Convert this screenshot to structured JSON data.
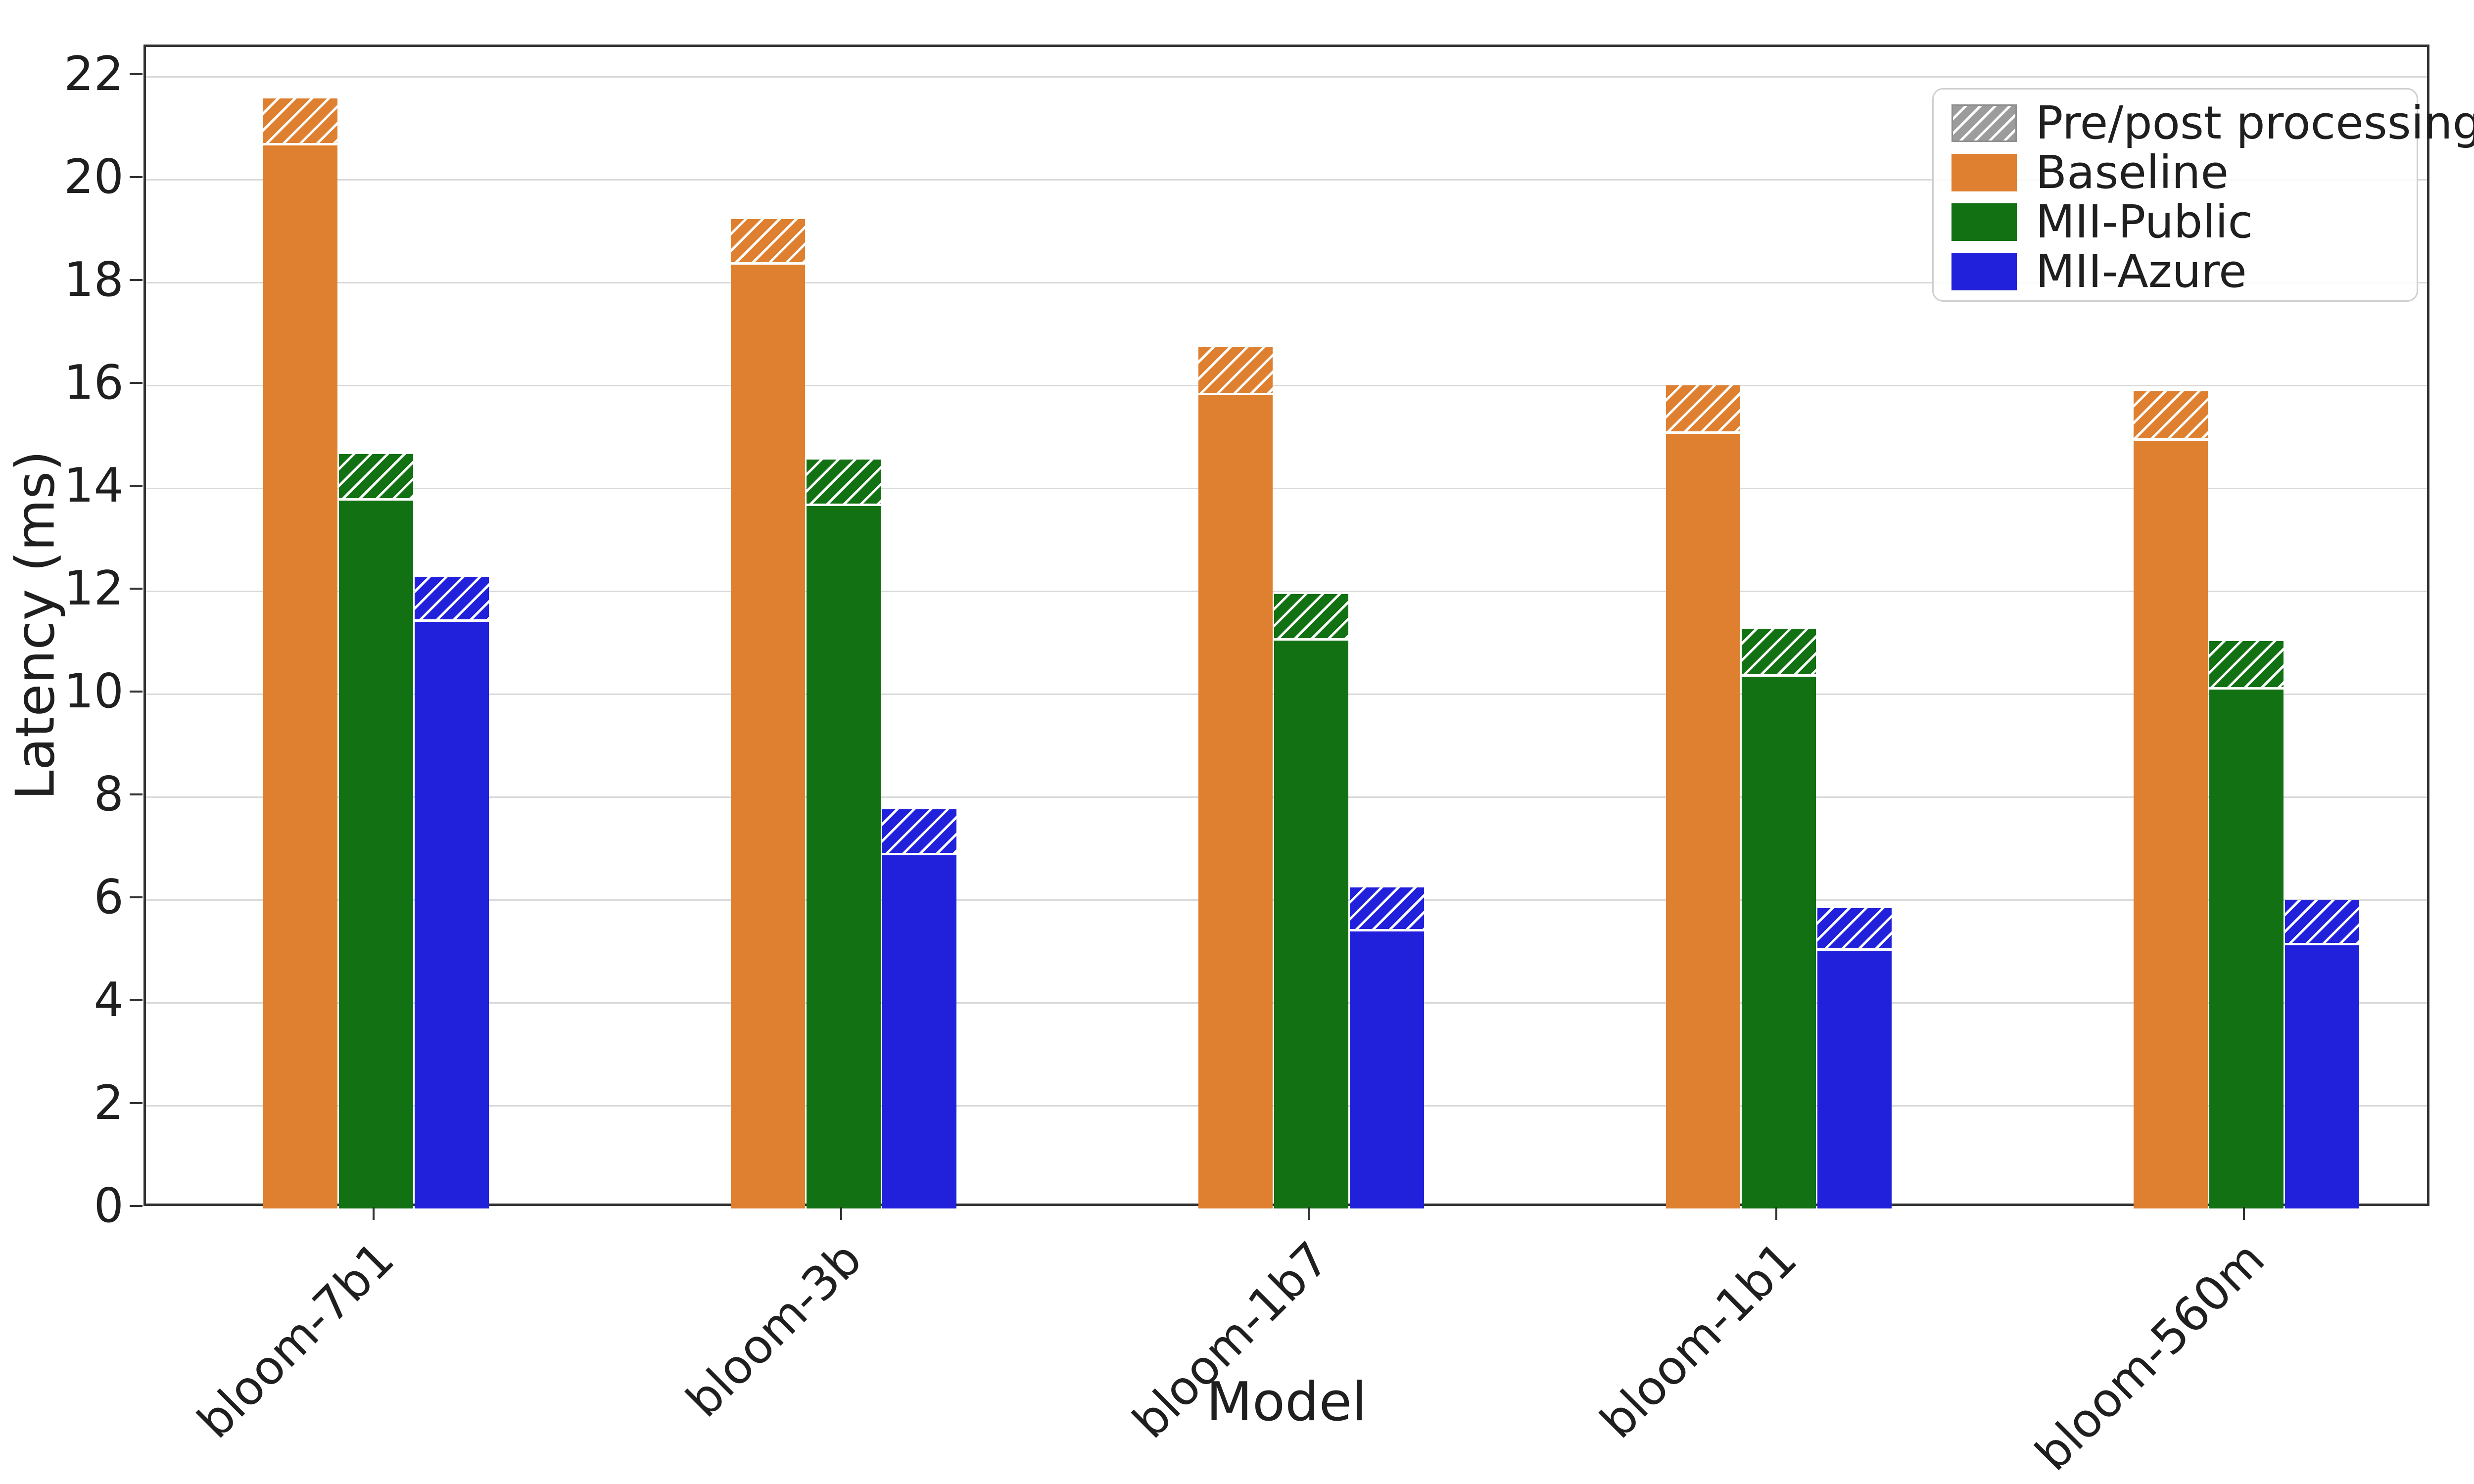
{
  "chart_data": {
    "type": "bar",
    "title": "",
    "xlabel": "Model",
    "ylabel": "Latency (ms)",
    "ylim": [
      0,
      22.6
    ],
    "yticks": [
      0,
      2,
      4,
      6,
      8,
      10,
      12,
      14,
      16,
      18,
      20,
      22
    ],
    "grid": "horizontal",
    "legend_position": "upper-right",
    "categories": [
      "bloom-7b1",
      "bloom-3b",
      "bloom-1b7",
      "bloom-1b1",
      "bloom-560m"
    ],
    "series": [
      {
        "name": "Baseline",
        "color": "#de8030",
        "total": [
          21.58,
          19.23,
          16.74,
          16.0,
          15.88
        ],
        "compute": [
          20.66,
          18.35,
          15.81,
          15.06,
          14.92
        ]
      },
      {
        "name": "MII-Public",
        "color": "#127112",
        "total": [
          14.66,
          14.56,
          11.94,
          11.27,
          11.03
        ],
        "compute": [
          13.76,
          13.65,
          11.04,
          10.34,
          10.09
        ]
      },
      {
        "name": "MII-Azure",
        "color": "#2121dc",
        "total": [
          12.28,
          7.76,
          6.24,
          5.84,
          6.0
        ],
        "compute": [
          11.4,
          6.87,
          5.38,
          5.01,
          5.12
        ]
      }
    ],
    "overlay_series": {
      "name": "Pre/post processing",
      "meaning": "hatched top segment of each bar = total minus compute latency",
      "color": "#9c9c9c",
      "hatch": "///"
    }
  },
  "legend": {
    "items": [
      {
        "key": "prepost",
        "label": "Pre/post processing",
        "swatch": "hatch-gray"
      },
      {
        "key": "baseline",
        "label": "Baseline",
        "swatch": "#de8030"
      },
      {
        "key": "mii-public",
        "label": "MII-Public",
        "swatch": "#127112"
      },
      {
        "key": "mii-azure",
        "label": "MII-Azure",
        "swatch": "#2121dc"
      }
    ]
  }
}
